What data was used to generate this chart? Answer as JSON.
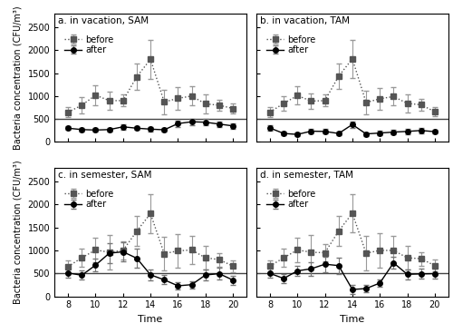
{
  "time": [
    8,
    9,
    10,
    11,
    12,
    13,
    14,
    15,
    16,
    17,
    18,
    19,
    20
  ],
  "panels": [
    {
      "title": "a. in vacation, SAM",
      "before_mean": [
        650,
        800,
        1020,
        900,
        900,
        1420,
        1800,
        870,
        950,
        1000,
        830,
        800,
        730
      ],
      "before_err": [
        110,
        180,
        220,
        190,
        130,
        280,
        420,
        270,
        250,
        210,
        200,
        110,
        110
      ],
      "after_mean": [
        300,
        270,
        260,
        270,
        330,
        300,
        280,
        265,
        400,
        440,
        430,
        390,
        350
      ],
      "after_err": [
        40,
        40,
        40,
        40,
        55,
        40,
        50,
        40,
        70,
        70,
        75,
        60,
        55
      ]
    },
    {
      "title": "b. in vacation, TAM",
      "before_mean": [
        650,
        840,
        1010,
        890,
        900,
        1430,
        1810,
        860,
        940,
        990,
        840,
        810,
        660
      ],
      "before_err": [
        100,
        160,
        200,
        170,
        130,
        280,
        420,
        260,
        230,
        200,
        190,
        120,
        100
      ],
      "after_mean": [
        305,
        185,
        165,
        235,
        230,
        185,
        380,
        175,
        195,
        215,
        230,
        250,
        225
      ],
      "after_err": [
        55,
        45,
        40,
        45,
        50,
        40,
        65,
        40,
        55,
        55,
        55,
        55,
        45
      ]
    },
    {
      "title": "c. in semester, SAM",
      "before_mean": [
        650,
        840,
        1010,
        960,
        1000,
        1420,
        1800,
        930,
        990,
        1010,
        840,
        800,
        660
      ],
      "before_err": [
        130,
        200,
        260,
        370,
        200,
        330,
        420,
        370,
        370,
        310,
        260,
        150,
        130
      ],
      "after_mean": [
        510,
        460,
        680,
        940,
        970,
        830,
        470,
        360,
        230,
        255,
        465,
        495,
        355
      ],
      "after_err": [
        100,
        100,
        135,
        210,
        210,
        210,
        120,
        100,
        75,
        75,
        120,
        120,
        100
      ]
    },
    {
      "title": "d. in semester, TAM",
      "before_mean": [
        660,
        840,
        1010,
        960,
        950,
        1420,
        1810,
        940,
        1000,
        1000,
        840,
        820,
        670
      ],
      "before_err": [
        130,
        200,
        260,
        370,
        180,
        330,
        420,
        370,
        370,
        310,
        260,
        150,
        130
      ],
      "after_mean": [
        500,
        390,
        555,
        600,
        700,
        670,
        150,
        170,
        290,
        730,
        480,
        490,
        495
      ],
      "after_err": [
        100,
        100,
        115,
        150,
        170,
        180,
        90,
        80,
        80,
        130,
        110,
        110,
        100
      ]
    }
  ],
  "hline_y": 500,
  "ylabel": "Bacteria concentration (CFU/m³)",
  "xlabel": "Time",
  "ylim": [
    0,
    2800
  ],
  "yticks": [
    0,
    500,
    1000,
    1500,
    2000,
    2500
  ],
  "xticks": [
    8,
    10,
    12,
    14,
    16,
    18,
    20
  ],
  "before_color": "#555555",
  "after_color": "#000000",
  "before_linestyle": "dotted",
  "after_linestyle": "solid",
  "marker_before": "s",
  "marker_after": "o",
  "markersize": 4,
  "linewidth": 1.0,
  "capsize": 2,
  "elinewidth": 0.8,
  "legend_fontsize": 7,
  "title_fontsize": 7.5,
  "tick_fontsize": 7,
  "ylabel_fontsize": 7,
  "xlabel_fontsize": 8
}
